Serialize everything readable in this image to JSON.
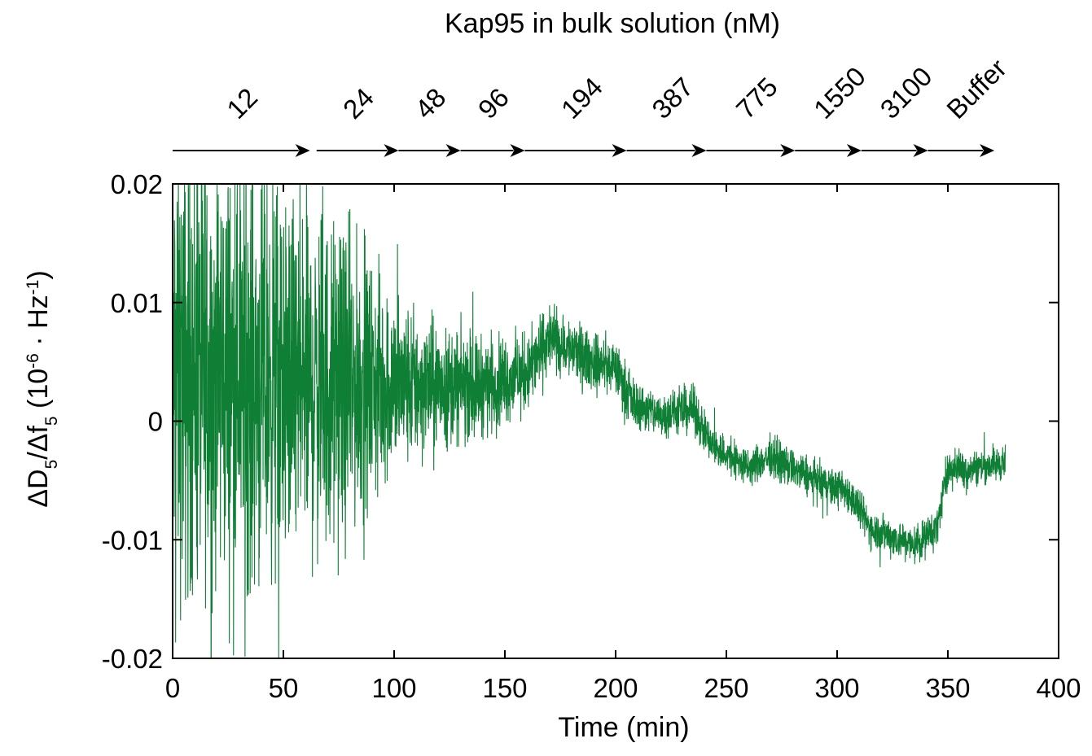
{
  "chart_data": {
    "type": "line",
    "title": "Kap95 in bulk solution (nM)",
    "xlabel": "Time (min)",
    "ylabel": {
      "prefix": "ΔD",
      "sub1": "5",
      "mid": "/Δf",
      "sub2": "5",
      "open": " (10",
      "sup1": "-6",
      "dot": " · Hz",
      "sup2": "-1",
      "close": ")"
    },
    "xlim": [
      0,
      400
    ],
    "ylim": [
      -0.02,
      0.02
    ],
    "x_ticks": [
      "0",
      "50",
      "100",
      "150",
      "200",
      "250",
      "300",
      "350",
      "400"
    ],
    "x_tick_values": [
      0,
      50,
      100,
      150,
      200,
      250,
      300,
      350,
      400
    ],
    "y_ticks": [
      "0.02",
      "0.01",
      "0",
      "-0.01",
      "-0.02"
    ],
    "y_tick_values": [
      0.02,
      0.01,
      0,
      -0.01,
      -0.02
    ],
    "grid": false,
    "series_color": "#0f7f35",
    "concentration_steps": [
      {
        "label": "12",
        "start": 0,
        "end": 62
      },
      {
        "label": "24",
        "start": 65,
        "end": 102
      },
      {
        "label": "48",
        "start": 102,
        "end": 130
      },
      {
        "label": "96",
        "start": 130,
        "end": 159
      },
      {
        "label": "194",
        "start": 159,
        "end": 205
      },
      {
        "label": "387",
        "start": 205,
        "end": 241
      },
      {
        "label": "775",
        "start": 241,
        "end": 281
      },
      {
        "label": "1550",
        "start": 281,
        "end": 311
      },
      {
        "label": "3100",
        "start": 311,
        "end": 341
      },
      {
        "label": "Buffer",
        "start": 341,
        "end": 371
      }
    ],
    "series": [
      {
        "envelope": [
          {
            "t": 0,
            "mean": 0.004,
            "spread": 0.028
          },
          {
            "t": 30,
            "mean": 0.004,
            "spread": 0.026
          },
          {
            "t": 60,
            "mean": 0.003,
            "spread": 0.022
          },
          {
            "t": 80,
            "mean": 0.003,
            "spread": 0.018
          },
          {
            "t": 100,
            "mean": 0.003,
            "spread": 0.011
          },
          {
            "t": 120,
            "mean": 0.003,
            "spread": 0.0075
          },
          {
            "t": 140,
            "mean": 0.003,
            "spread": 0.006
          },
          {
            "t": 160,
            "mean": 0.004,
            "spread": 0.0048
          },
          {
            "t": 170,
            "mean": 0.007,
            "spread": 0.0042
          },
          {
            "t": 180,
            "mean": 0.006,
            "spread": 0.0038
          },
          {
            "t": 190,
            "mean": 0.005,
            "spread": 0.0034
          },
          {
            "t": 200,
            "mean": 0.0045,
            "spread": 0.0032
          },
          {
            "t": 208,
            "mean": 0.0015,
            "spread": 0.003
          },
          {
            "t": 220,
            "mean": 0.0005,
            "spread": 0.0028
          },
          {
            "t": 235,
            "mean": 0.001,
            "spread": 0.0028
          },
          {
            "t": 243,
            "mean": -0.002,
            "spread": 0.0026
          },
          {
            "t": 260,
            "mean": -0.004,
            "spread": 0.0024
          },
          {
            "t": 270,
            "mean": -0.003,
            "spread": 0.0024
          },
          {
            "t": 280,
            "mean": -0.004,
            "spread": 0.0024
          },
          {
            "t": 290,
            "mean": -0.005,
            "spread": 0.0024
          },
          {
            "t": 305,
            "mean": -0.006,
            "spread": 0.0024
          },
          {
            "t": 315,
            "mean": -0.009,
            "spread": 0.0024
          },
          {
            "t": 335,
            "mean": -0.0105,
            "spread": 0.0024
          },
          {
            "t": 345,
            "mean": -0.009,
            "spread": 0.0024
          },
          {
            "t": 350,
            "mean": -0.004,
            "spread": 0.0022
          },
          {
            "t": 360,
            "mean": -0.004,
            "spread": 0.0022
          },
          {
            "t": 376,
            "mean": -0.0035,
            "spread": 0.0022
          }
        ]
      }
    ]
  }
}
